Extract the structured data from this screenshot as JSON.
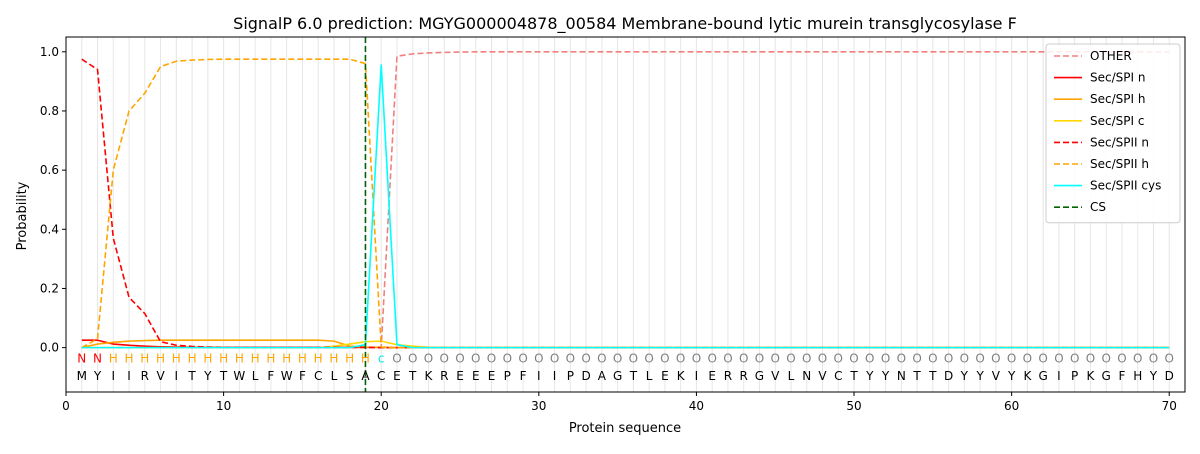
{
  "chart_data": {
    "type": "line",
    "title": "SignalP 6.0 prediction: MGYG000004878_00584 Membrane-bound lytic murein transglycosylase F",
    "xlabel": "Protein sequence",
    "ylabel": "Probability",
    "xlim": [
      0,
      71
    ],
    "ylim": [
      -0.15,
      1.05
    ],
    "xticks": [
      0,
      10,
      20,
      30,
      40,
      50,
      60,
      70
    ],
    "xtick_labels": [
      "0",
      "10",
      "20",
      "30",
      "40",
      "50",
      "60",
      "70"
    ],
    "yticks": [
      0.0,
      0.2,
      0.4,
      0.6,
      0.8,
      1.0
    ],
    "ytick_labels": [
      "0.0",
      "0.2",
      "0.4",
      "0.6",
      "0.8",
      "1.0"
    ],
    "legend_position": "top-right",
    "sequence": [
      "M",
      "Y",
      "I",
      "I",
      "R",
      "V",
      "I",
      "T",
      "Y",
      "T",
      "W",
      "L",
      "F",
      "W",
      "F",
      "C",
      "L",
      "S",
      "A",
      "C",
      "E",
      "T",
      "K",
      "R",
      "E",
      "E",
      "E",
      "P",
      "F",
      "I",
      "I",
      "P",
      "D",
      "A",
      "G",
      "T",
      "L",
      "E",
      "K",
      "I",
      "E",
      "R",
      "R",
      "G",
      "V",
      "L",
      "N",
      "V",
      "C",
      "T",
      "Y",
      "Y",
      "N",
      "T",
      "T",
      "D",
      "Y",
      "Y",
      "V",
      "Y",
      "K",
      "G",
      "I",
      "P",
      "K",
      "G",
      "F",
      "H",
      "Y",
      "D"
    ],
    "region_labels": [
      "N",
      "N",
      "H",
      "H",
      "H",
      "H",
      "H",
      "H",
      "H",
      "H",
      "H",
      "H",
      "H",
      "H",
      "H",
      "H",
      "H",
      "H",
      "H",
      "c",
      "O",
      "O",
      "O",
      "O",
      "O",
      "O",
      "O",
      "O",
      "O",
      "O",
      "O",
      "O",
      "O",
      "O",
      "O",
      "O",
      "O",
      "O",
      "O",
      "O",
      "O",
      "O",
      "O",
      "O",
      "O",
      "O",
      "O",
      "O",
      "O",
      "O",
      "O",
      "O",
      "O",
      "O",
      "O",
      "O",
      "O",
      "O",
      "O",
      "O",
      "O",
      "O",
      "O",
      "O",
      "O",
      "O",
      "O",
      "O",
      "O",
      "O"
    ],
    "region_colors": {
      "N": "#ff0000",
      "H": "#ffa500",
      "c": "#00e5ee",
      "O": "#808080"
    },
    "cs_position": 19,
    "series": [
      {
        "name": "OTHER",
        "color": "#f08080",
        "dash": "dashed",
        "values": [
          0.0,
          0.0,
          0.0,
          0.0,
          0.0,
          0.0,
          0.0,
          0.0,
          0.0,
          0.0,
          0.0,
          0.0,
          0.0,
          0.0,
          0.0,
          0.0,
          0.0,
          0.0,
          0.0,
          0.0,
          0.985,
          0.993,
          0.996,
          0.998,
          0.999,
          1,
          1,
          1,
          1,
          1,
          1,
          1,
          1,
          1,
          1,
          1,
          1,
          1,
          1,
          1,
          1,
          1,
          1,
          1,
          1,
          1,
          1,
          1,
          1,
          1,
          1,
          1,
          1,
          1,
          1,
          1,
          1,
          1,
          1,
          1,
          1,
          1,
          1,
          1,
          1,
          1,
          1,
          1,
          1,
          1
        ]
      },
      {
        "name": "Sec/SPI n",
        "color": "#ff0000",
        "dash": "solid",
        "values": [
          0.025,
          0.025,
          0.012,
          0.008,
          0.005,
          0.003,
          0.002,
          0.001,
          0.001,
          0.001,
          0.001,
          0.001,
          0.001,
          0.001,
          0.001,
          0.001,
          0.001,
          0.001,
          0.001,
          0.001,
          0,
          0,
          0,
          0,
          0,
          0,
          0,
          0,
          0,
          0,
          0,
          0,
          0,
          0,
          0,
          0,
          0,
          0,
          0,
          0,
          0,
          0,
          0,
          0,
          0,
          0,
          0,
          0,
          0,
          0,
          0,
          0,
          0,
          0,
          0,
          0,
          0,
          0,
          0,
          0,
          0,
          0,
          0,
          0,
          0,
          0,
          0,
          0,
          0,
          0
        ]
      },
      {
        "name": "Sec/SPI h",
        "color": "#ffa500",
        "dash": "solid",
        "values": [
          0.0,
          0.012,
          0.018,
          0.022,
          0.024,
          0.025,
          0.025,
          0.025,
          0.025,
          0.025,
          0.025,
          0.025,
          0.025,
          0.025,
          0.025,
          0.025,
          0.022,
          0.005,
          0.002,
          0.001,
          0.0,
          0.0,
          0,
          0,
          0,
          0,
          0,
          0,
          0,
          0,
          0,
          0,
          0,
          0,
          0,
          0,
          0,
          0,
          0,
          0,
          0,
          0,
          0,
          0,
          0,
          0,
          0,
          0,
          0,
          0,
          0,
          0,
          0,
          0,
          0,
          0,
          0,
          0,
          0,
          0,
          0,
          0,
          0,
          0,
          0,
          0,
          0,
          0,
          0,
          0
        ]
      },
      {
        "name": "Sec/SPI c",
        "color": "#ffd700",
        "dash": "solid",
        "values": [
          0,
          0,
          0,
          0,
          0,
          0,
          0,
          0,
          0,
          0,
          0,
          0,
          0,
          0,
          0,
          0,
          0.005,
          0.012,
          0.02,
          0.022,
          0.01,
          0.005,
          0.001,
          0,
          0,
          0,
          0,
          0,
          0,
          0,
          0,
          0,
          0,
          0,
          0,
          0,
          0,
          0,
          0,
          0,
          0,
          0,
          0,
          0,
          0,
          0,
          0,
          0,
          0,
          0,
          0,
          0,
          0,
          0,
          0,
          0,
          0,
          0,
          0,
          0,
          0,
          0,
          0,
          0,
          0,
          0,
          0,
          0,
          0,
          0
        ]
      },
      {
        "name": "Sec/SPII n",
        "color": "#ff0000",
        "dash": "dashed",
        "values": [
          0.975,
          0.94,
          0.37,
          0.17,
          0.115,
          0.02,
          0.008,
          0.004,
          0.002,
          0.001,
          0.001,
          0.001,
          0.001,
          0.001,
          0.001,
          0.001,
          0.001,
          0.001,
          0.001,
          0.0,
          0,
          0,
          0,
          0,
          0,
          0,
          0,
          0,
          0,
          0,
          0,
          0,
          0,
          0,
          0,
          0,
          0,
          0,
          0,
          0,
          0,
          0,
          0,
          0,
          0,
          0,
          0,
          0,
          0,
          0,
          0,
          0,
          0,
          0,
          0,
          0,
          0,
          0,
          0,
          0,
          0,
          0,
          0,
          0,
          0,
          0,
          0,
          0,
          0,
          0
        ]
      },
      {
        "name": "Sec/SPII h",
        "color": "#ffa500",
        "dash": "dashed",
        "values": [
          0.0,
          0.03,
          0.6,
          0.8,
          0.86,
          0.95,
          0.968,
          0.972,
          0.974,
          0.975,
          0.975,
          0.975,
          0.975,
          0.975,
          0.975,
          0.975,
          0.975,
          0.975,
          0.96,
          0.002,
          0.0,
          0,
          0,
          0,
          0,
          0,
          0,
          0,
          0,
          0,
          0,
          0,
          0,
          0,
          0,
          0,
          0,
          0,
          0,
          0,
          0,
          0,
          0,
          0,
          0,
          0,
          0,
          0,
          0,
          0,
          0,
          0,
          0,
          0,
          0,
          0,
          0,
          0,
          0,
          0,
          0,
          0,
          0,
          0,
          0,
          0,
          0,
          0,
          0,
          0
        ]
      },
      {
        "name": "Sec/SPII cys",
        "color": "#00ffff",
        "dash": "solid",
        "values": [
          0,
          0,
          0,
          0,
          0,
          0,
          0,
          0,
          0,
          0,
          0,
          0,
          0,
          0,
          0,
          0,
          0,
          0,
          0.01,
          0.955,
          0.01,
          0,
          0,
          0,
          0,
          0,
          0,
          0,
          0,
          0,
          0,
          0,
          0,
          0,
          0,
          0,
          0,
          0,
          0,
          0,
          0,
          0,
          0,
          0,
          0,
          0,
          0,
          0,
          0,
          0,
          0,
          0,
          0,
          0,
          0,
          0,
          0,
          0,
          0,
          0,
          0,
          0,
          0,
          0,
          0,
          0,
          0,
          0,
          0,
          0
        ]
      },
      {
        "name": "CS",
        "color": "#006400",
        "dash": "dashed",
        "values": []
      }
    ]
  }
}
